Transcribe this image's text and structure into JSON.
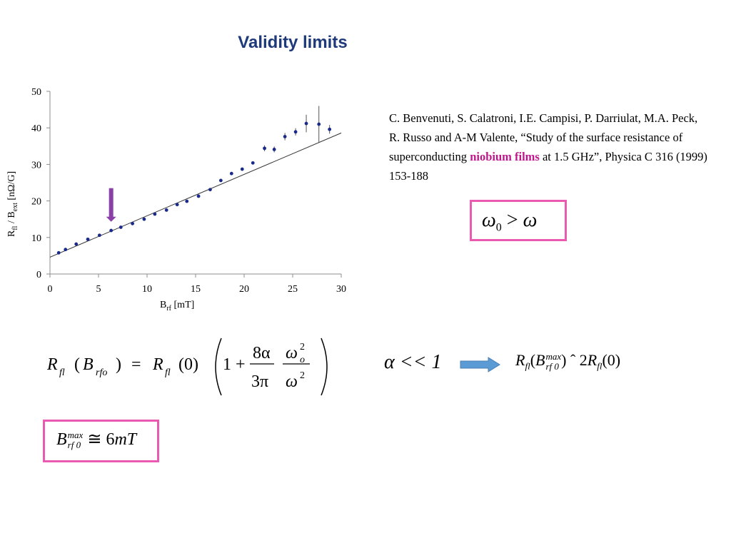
{
  "slide": {
    "title": "Validity limits"
  },
  "reference": {
    "text_before": "C. Benvenuti, S. Calatroni, I.E. Campisi, P. Darriulat, M.A. Peck, R. Russo and A-M Valente, “Study of the surface resistance of superconducting ",
    "highlight": "niobium films",
    "text_after": " at 1.5 GHz”, Physica C 316 (1999) 153-188",
    "highlight_color": "#c0188c"
  },
  "equations": {
    "omega_condition": {
      "lhs": "ω",
      "lhs_sub": "0",
      "op": " > ",
      "rhs": "ω"
    },
    "main": {
      "lhs_r": "R",
      "lhs_r_sub": "fl",
      "lhs_arg_open": "(",
      "lhs_b": "B",
      "lhs_b_sub": "rfo",
      "lhs_arg_close": ")",
      "equals": "=",
      "rhs_r": "R",
      "rhs_r_sub": "fl",
      "rhs_arg": "(0)",
      "one_plus": "1 +",
      "num1": "8α",
      "den1": "3π",
      "num2": "ω",
      "num2_sub": "o",
      "num2_sup": "2",
      "den2": "ω",
      "den2_sup": "2"
    },
    "alpha_condition": "α << 1",
    "result": {
      "r": "R",
      "r_sub": "fl",
      "b_open": "(",
      "b": "B",
      "b_sup": "max",
      "b_sub": "rf 0",
      "b_close": ")",
      "approx": "ˆ",
      "factor": "2",
      "r2": "R",
      "r2_sub": "fl",
      "tail": "(0)"
    },
    "bmax": {
      "b": "B",
      "sup": "max",
      "sub": "rf 0",
      "op": " ≅ ",
      "value": "6",
      "unit": "mT"
    }
  },
  "colors": {
    "title": "#1f3a7a",
    "box_border": "#ea5ab0",
    "arrow_fill": "#5b9bd5",
    "marker_arrow": "#8b3fa8"
  },
  "chart_data": {
    "type": "scatter",
    "x_axis": {
      "label_main": "B",
      "label_sub": "rf",
      "label_unit": " [mT]",
      "min": 0,
      "max": 30,
      "ticks": [
        0,
        5,
        10,
        15,
        20,
        25,
        30
      ]
    },
    "y_axis": {
      "label_main": "R",
      "label_sub": "fl",
      "label_mid": " / B",
      "label_sub2": "ext",
      "label_unit": " [nΩ/G]",
      "min": 0,
      "max": 50,
      "ticks": [
        0,
        10,
        20,
        30,
        40,
        50
      ]
    },
    "points": [
      {
        "x": 0.9,
        "y": 5.8
      },
      {
        "x": 1.6,
        "y": 6.7
      },
      {
        "x": 2.7,
        "y": 8.2
      },
      {
        "x": 3.9,
        "y": 9.5
      },
      {
        "x": 5.1,
        "y": 10.6
      },
      {
        "x": 6.3,
        "y": 11.9
      },
      {
        "x": 7.3,
        "y": 12.8
      },
      {
        "x": 8.5,
        "y": 13.8
      },
      {
        "x": 9.7,
        "y": 15.0
      },
      {
        "x": 10.8,
        "y": 16.4
      },
      {
        "x": 12.0,
        "y": 17.5
      },
      {
        "x": 13.1,
        "y": 19.0
      },
      {
        "x": 14.1,
        "y": 19.9
      },
      {
        "x": 15.3,
        "y": 21.3
      },
      {
        "x": 16.5,
        "y": 23.1
      },
      {
        "x": 17.6,
        "y": 25.6
      },
      {
        "x": 18.7,
        "y": 27.5
      },
      {
        "x": 19.8,
        "y": 28.7
      },
      {
        "x": 20.9,
        "y": 30.4
      },
      {
        "x": 22.1,
        "y": 34.4,
        "err": 0.8
      },
      {
        "x": 23.1,
        "y": 34.1,
        "err": 0.8
      },
      {
        "x": 24.2,
        "y": 37.6,
        "err": 1.0
      },
      {
        "x": 25.3,
        "y": 38.9,
        "err": 1.0
      },
      {
        "x": 26.4,
        "y": 41.2,
        "err": 2.4
      },
      {
        "x": 27.7,
        "y": 41.0,
        "err": 5.0
      },
      {
        "x": 28.8,
        "y": 39.6,
        "err": 1.2
      }
    ],
    "fit_line": {
      "x": [
        0,
        30
      ],
      "y": [
        4.6,
        38.6
      ]
    },
    "marker_arrow": {
      "x": 6.3,
      "y_from": 23.5,
      "y_to": 14.3
    },
    "grid": false
  }
}
